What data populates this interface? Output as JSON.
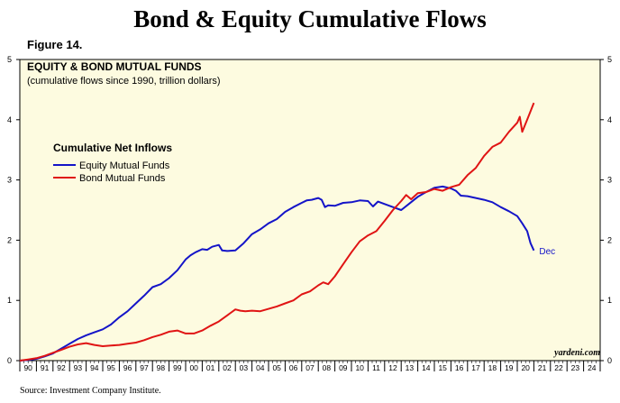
{
  "page": {
    "title": "Bond & Equity Cumulative Flows",
    "figure_label": "Figure 14.",
    "source": "Source: Investment Company Institute."
  },
  "chart_data": {
    "type": "line",
    "title": "EQUITY & BOND MUTUAL FUNDS",
    "subtitle": "(cumulative flows since 1990, trillion dollars)",
    "legend_title": "Cumulative Net Inflows",
    "legend_placement": "upper-left",
    "watermark": "yardeni.com",
    "xlim": [
      1990,
      2025
    ],
    "ylim": [
      0,
      5
    ],
    "y_ticks": [
      "0",
      "1",
      "2",
      "3",
      "4",
      "5"
    ],
    "x_ticks": [
      "90",
      "91",
      "92",
      "93",
      "94",
      "95",
      "96",
      "97",
      "98",
      "99",
      "00",
      "01",
      "02",
      "03",
      "04",
      "05",
      "06",
      "07",
      "08",
      "09",
      "10",
      "11",
      "12",
      "13",
      "14",
      "15",
      "16",
      "17",
      "18",
      "19",
      "20",
      "21",
      "22",
      "23",
      "24"
    ],
    "background_color": "#fdfbe0",
    "annotation": {
      "text": "Dec",
      "x": 2021.0,
      "y": 1.83
    },
    "series": [
      {
        "name": "Equity Mutual Funds",
        "color": "#1414c8",
        "x": [
          1990.0,
          1990.5,
          1991.0,
          1991.5,
          1992.0,
          1992.5,
          1993.0,
          1993.5,
          1994.0,
          1994.5,
          1995.0,
          1995.5,
          1996.0,
          1996.5,
          1997.0,
          1997.5,
          1998.0,
          1998.5,
          1999.0,
          1999.5,
          2000.0,
          2000.3,
          2000.6,
          2001.0,
          2001.3,
          2001.6,
          2002.0,
          2002.2,
          2002.5,
          2003.0,
          2003.5,
          2004.0,
          2004.5,
          2005.0,
          2005.5,
          2006.0,
          2006.5,
          2007.0,
          2007.3,
          2007.6,
          2008.0,
          2008.2,
          2008.4,
          2008.6,
          2009.0,
          2009.5,
          2010.0,
          2010.5,
          2011.0,
          2011.3,
          2011.6,
          2012.0,
          2012.5,
          2013.0,
          2013.5,
          2014.0,
          2014.5,
          2015.0,
          2015.5,
          2016.0,
          2016.3,
          2016.6,
          2017.0,
          2017.5,
          2018.0,
          2018.5,
          2019.0,
          2019.5,
          2020.0,
          2020.3,
          2020.6,
          2020.8,
          2021.0
        ],
        "values": [
          0.0,
          0.01,
          0.03,
          0.07,
          0.12,
          0.2,
          0.28,
          0.36,
          0.42,
          0.47,
          0.52,
          0.6,
          0.72,
          0.82,
          0.95,
          1.08,
          1.22,
          1.27,
          1.37,
          1.5,
          1.68,
          1.75,
          1.8,
          1.85,
          1.84,
          1.89,
          1.92,
          1.83,
          1.82,
          1.83,
          1.95,
          2.1,
          2.18,
          2.28,
          2.35,
          2.47,
          2.55,
          2.62,
          2.66,
          2.67,
          2.7,
          2.67,
          2.55,
          2.58,
          2.57,
          2.62,
          2.63,
          2.66,
          2.65,
          2.56,
          2.64,
          2.6,
          2.55,
          2.5,
          2.61,
          2.72,
          2.8,
          2.87,
          2.89,
          2.86,
          2.82,
          2.74,
          2.73,
          2.7,
          2.67,
          2.63,
          2.55,
          2.48,
          2.4,
          2.28,
          2.15,
          1.95,
          1.83
        ]
      },
      {
        "name": "Bond Mutual Funds",
        "color": "#e01414",
        "x": [
          1990.0,
          1990.5,
          1991.0,
          1991.5,
          1992.0,
          1992.5,
          1993.0,
          1993.5,
          1994.0,
          1994.5,
          1995.0,
          1995.5,
          1996.0,
          1996.5,
          1997.0,
          1997.5,
          1998.0,
          1998.5,
          1999.0,
          1999.5,
          2000.0,
          2000.5,
          2001.0,
          2001.5,
          2002.0,
          2002.5,
          2003.0,
          2003.3,
          2003.6,
          2004.0,
          2004.5,
          2005.0,
          2005.5,
          2006.0,
          2006.5,
          2007.0,
          2007.5,
          2008.0,
          2008.3,
          2008.6,
          2009.0,
          2009.5,
          2010.0,
          2010.5,
          2011.0,
          2011.5,
          2012.0,
          2012.5,
          2013.0,
          2013.3,
          2013.6,
          2014.0,
          2014.5,
          2015.0,
          2015.5,
          2016.0,
          2016.5,
          2017.0,
          2017.5,
          2018.0,
          2018.5,
          2019.0,
          2019.5,
          2020.0,
          2020.15,
          2020.3,
          2020.6,
          2021.0
        ],
        "values": [
          0.0,
          0.02,
          0.04,
          0.08,
          0.13,
          0.18,
          0.23,
          0.27,
          0.29,
          0.26,
          0.24,
          0.25,
          0.26,
          0.28,
          0.3,
          0.34,
          0.39,
          0.43,
          0.48,
          0.5,
          0.45,
          0.45,
          0.5,
          0.58,
          0.65,
          0.75,
          0.85,
          0.83,
          0.82,
          0.83,
          0.82,
          0.86,
          0.9,
          0.95,
          1.0,
          1.1,
          1.15,
          1.25,
          1.3,
          1.27,
          1.4,
          1.6,
          1.8,
          1.98,
          2.08,
          2.15,
          2.32,
          2.5,
          2.65,
          2.75,
          2.68,
          2.78,
          2.8,
          2.85,
          2.82,
          2.88,
          2.92,
          3.08,
          3.2,
          3.4,
          3.55,
          3.62,
          3.8,
          3.95,
          4.05,
          3.8,
          4.0,
          4.28
        ]
      }
    ]
  }
}
